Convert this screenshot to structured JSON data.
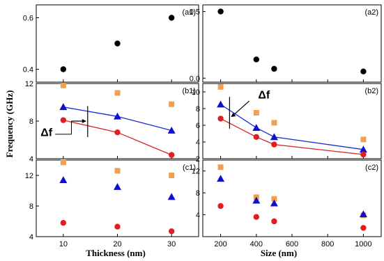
{
  "chart_data": {
    "type": "scatter",
    "ylabel": "Frequency (GHz)",
    "xlabels": {
      "left": "Thickness (nm)",
      "right": "Size (nm)"
    },
    "colors": {
      "black": "#000000",
      "orange": "#f0a050",
      "blue": "#1010cc",
      "red": "#e02020",
      "line_blue": "#1a2ad0",
      "line_red": "#d82020"
    },
    "panels": [
      {
        "id": "a1",
        "label": "(a1)",
        "xlim": [
          5,
          35
        ],
        "ylim": [
          0.35,
          0.65
        ],
        "xticks": [
          10,
          20,
          30
        ],
        "yticks": [
          0.4,
          0.6
        ],
        "ytick_labels": [
          "0.4",
          "0.6"
        ],
        "series": [
          {
            "marker": "circle",
            "color": "black",
            "x": [
              10,
              20,
              30
            ],
            "y": [
              0.4,
              0.5,
              0.6
            ]
          }
        ]
      },
      {
        "id": "a2",
        "label": "(a2)",
        "xlim": [
          100,
          1100
        ],
        "ylim": [
          -0.03,
          0.55
        ],
        "xticks": [
          200,
          400,
          600,
          800,
          1000
        ],
        "yticks": [
          0.0,
          0.5
        ],
        "ytick_labels": [
          "0.0",
          "0.5"
        ],
        "series": [
          {
            "marker": "circle",
            "color": "black",
            "x": [
              200,
              400,
              500,
              1000
            ],
            "y": [
              0.5,
              0.14,
              0.07,
              0.05
            ]
          }
        ]
      },
      {
        "id": "b1",
        "label": "(b1)",
        "xlim": [
          5,
          35
        ],
        "ylim": [
          4,
          12
        ],
        "xticks": [
          10,
          20,
          30
        ],
        "yticks": [
          4,
          8,
          12
        ],
        "ytick_labels": [
          "4",
          "8",
          "12"
        ],
        "series": [
          {
            "marker": "square",
            "color": "orange",
            "x": [
              10,
              20,
              30
            ],
            "y": [
              11.8,
              11.0,
              9.8
            ]
          },
          {
            "marker": "triangle",
            "color": "blue",
            "line": "line_blue",
            "x": [
              10,
              20,
              30
            ],
            "y": [
              9.5,
              8.5,
              7.0
            ]
          },
          {
            "marker": "circle",
            "color": "red",
            "line": "line_red",
            "x": [
              10,
              20,
              30
            ],
            "y": [
              8.1,
              6.8,
              4.4
            ]
          }
        ],
        "annotation": {
          "text": "Δf",
          "x": 10.8,
          "y": 8.6
        }
      },
      {
        "id": "b2",
        "label": "(b2)",
        "xlim": [
          100,
          1100
        ],
        "ylim": [
          2,
          11
        ],
        "xticks": [
          200,
          400,
          600,
          800,
          1000
        ],
        "yticks": [
          2,
          4,
          6,
          8,
          10
        ],
        "ytick_labels": [
          "2",
          "4",
          "6",
          "8",
          "10"
        ],
        "series": [
          {
            "marker": "square",
            "color": "orange",
            "x": [
              200,
              400,
              500,
              1000
            ],
            "y": [
              10.6,
              7.5,
              6.3,
              4.3
            ]
          },
          {
            "marker": "triangle",
            "color": "blue",
            "line": "line_blue",
            "x": [
              200,
              400,
              500,
              1000
            ],
            "y": [
              8.5,
              5.7,
              4.6,
              3.1
            ]
          },
          {
            "marker": "circle",
            "color": "red",
            "line": "line_red",
            "x": [
              200,
              400,
              500,
              1000
            ],
            "y": [
              6.8,
              4.6,
              3.7,
              2.5
            ]
          }
        ],
        "annotation": {
          "text": "Δf",
          "x": 410,
          "y": 9.2
        }
      },
      {
        "id": "c1",
        "label": "(c1)",
        "xlim": [
          5,
          35
        ],
        "ylim": [
          4,
          14
        ],
        "xticks": [
          10,
          20,
          30
        ],
        "yticks": [
          4,
          8,
          12
        ],
        "ytick_labels": [
          "4",
          "8",
          "12"
        ],
        "series": [
          {
            "marker": "square",
            "color": "orange",
            "x": [
              10,
              20,
              30
            ],
            "y": [
              13.7,
              12.6,
              12.0
            ]
          },
          {
            "marker": "triangle",
            "color": "blue",
            "x": [
              10,
              20,
              30
            ],
            "y": [
              11.4,
              10.5,
              9.2
            ]
          },
          {
            "marker": "circle",
            "color": "red",
            "x": [
              10,
              20,
              30
            ],
            "y": [
              5.8,
              5.3,
              4.7
            ]
          }
        ]
      },
      {
        "id": "c2",
        "label": "(c2)",
        "xlim": [
          100,
          1100
        ],
        "ylim": [
          0,
          14
        ],
        "xticks": [
          200,
          400,
          600,
          800,
          1000
        ],
        "yticks": [
          4,
          8,
          12
        ],
        "ytick_labels": [
          "4",
          "8",
          "12"
        ],
        "series": [
          {
            "marker": "square",
            "color": "orange",
            "x": [
              200,
              400,
              500,
              1000
            ],
            "y": [
              12.7,
              7.2,
              6.9,
              3.9
            ]
          },
          {
            "marker": "triangle",
            "color": "blue",
            "x": [
              200,
              400,
              500,
              1000
            ],
            "y": [
              10.6,
              6.6,
              6.1,
              4.1
            ]
          },
          {
            "marker": "circle",
            "color": "red",
            "x": [
              200,
              400,
              500,
              1000
            ],
            "y": [
              5.6,
              3.6,
              2.8,
              1.6
            ]
          }
        ]
      }
    ]
  }
}
